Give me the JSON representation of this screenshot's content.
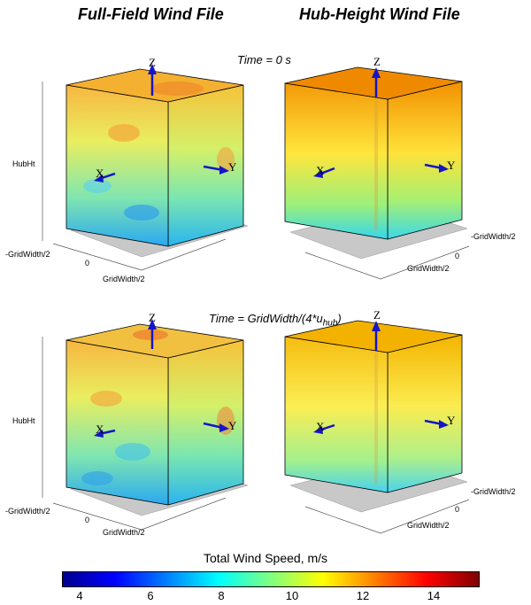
{
  "titles": {
    "left": "Full-Field Wind File",
    "right": "Hub-Height Wind File"
  },
  "time_labels": {
    "first": "Time = 0 s",
    "second_main": "Time = GridWidth/(4*u",
    "second_sub": "hub",
    "second_end": ")"
  },
  "axes": {
    "z_label": "Z",
    "x_label": "X",
    "y_label": "Y",
    "hubht_tick": "HubHt",
    "neg_gridwidth_tick": "-GridWidth/2",
    "zero_tick": "0",
    "gridwidth_tick": "GridWidth/2"
  },
  "colorbar": {
    "label": "Total Wind Speed, m/s",
    "ticks": [
      "4",
      "6",
      "8",
      "10",
      "12",
      "14"
    ],
    "tick_values": [
      4,
      6,
      8,
      10,
      12,
      14
    ],
    "range": [
      3.5,
      15.3
    ],
    "colormap": [
      "#00008f",
      "#0000ff",
      "#0080ff",
      "#00ffff",
      "#80ff80",
      "#ffff00",
      "#ff8000",
      "#ff0000",
      "#800000"
    ]
  },
  "colors": {
    "arrow": "#1515c8",
    "floor_shadow": "#bdbdbd",
    "hub_top_t0": "#f08c00",
    "hub_top_t1": "#f2b400"
  }
}
